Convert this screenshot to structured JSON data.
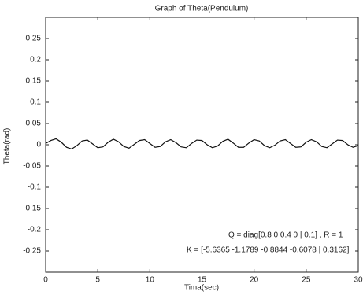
{
  "chart_data": {
    "type": "line",
    "title": "Graph of Theta(Pendulum)",
    "xlabel": "Tima(sec)",
    "ylabel": "Theta(rad)",
    "annotations": [
      "Q = diag[0.8 0 0.4 0 | 0.1] , R = 1",
      "K = [-5.6365 -1.1789 -0.8844 -0.6078 | 0.3162]"
    ],
    "x": [
      0,
      0.5,
      1,
      1.5,
      2,
      2.5,
      3,
      3.5,
      4,
      4.5,
      5,
      5.5,
      6,
      6.5,
      7,
      7.5,
      8,
      8.5,
      9,
      9.5,
      10,
      10.5,
      11,
      11.5,
      12,
      12.5,
      13,
      13.5,
      14,
      14.5,
      15,
      15.5,
      16,
      16.5,
      17,
      17.5,
      18,
      18.5,
      19,
      19.5,
      20,
      20.5,
      21,
      21.5,
      22,
      22.5,
      23,
      23.5,
      24,
      24.5,
      25,
      25.5,
      26,
      26.5,
      27,
      27.5,
      28,
      28.5,
      29,
      29.5,
      30
    ],
    "series": [
      {
        "name": "Theta",
        "color": "#111111",
        "values": [
          0.003,
          0.01,
          0.014,
          0.006,
          -0.006,
          -0.01,
          -0.002,
          0.009,
          0.011,
          0.002,
          -0.007,
          -0.005,
          0.006,
          0.013,
          0.007,
          -0.004,
          -0.008,
          0.001,
          0.01,
          0.012,
          0.003,
          -0.006,
          -0.004,
          0.007,
          0.012,
          0.005,
          -0.005,
          -0.007,
          0.003,
          0.011,
          0.01,
          0.0,
          -0.007,
          -0.003,
          0.008,
          0.013,
          0.004,
          -0.006,
          -0.006,
          0.004,
          0.012,
          0.009,
          -0.002,
          -0.007,
          -0.001,
          0.009,
          0.012,
          0.003,
          -0.006,
          -0.005,
          0.006,
          0.012,
          0.007,
          -0.004,
          -0.007,
          0.002,
          0.011,
          0.01,
          0.0,
          -0.006,
          -0.002
        ]
      }
    ],
    "xlim": [
      0,
      30
    ],
    "xticks": [
      0,
      5,
      10,
      15,
      20,
      25,
      30
    ],
    "ylim": [
      -0.3,
      0.3
    ],
    "yticks": [
      0.25,
      0.2,
      0.15,
      0.1,
      0.05,
      0,
      -0.05,
      -0.1,
      -0.15,
      -0.2,
      -0.25
    ],
    "grid": false
  }
}
